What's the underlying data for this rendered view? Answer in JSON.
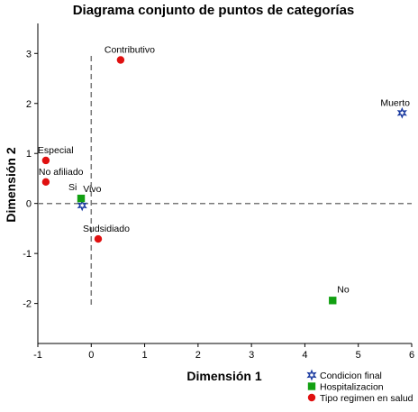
{
  "chart_data": {
    "type": "scatter",
    "title": "Diagrama conjunto de puntos de categorías",
    "xlabel": "Dimensión 1",
    "ylabel": "Dimensión 2",
    "xlim": [
      -1,
      6
    ],
    "ylim": [
      -2.8,
      3.6
    ],
    "x_ticks": [
      -1,
      0,
      1,
      2,
      3,
      4,
      5,
      6
    ],
    "y_ticks": [
      -2,
      -1,
      0,
      1,
      2,
      3
    ],
    "reference_lines": {
      "x": 0,
      "y": 0,
      "style": "dashed"
    },
    "legend_position": "bottom-right",
    "series": [
      {
        "name": "Condicion final",
        "marker": "star",
        "color": "#1a3aa0",
        "points": [
          {
            "label": "Vivo",
            "x": -0.17,
            "y": -0.04
          },
          {
            "label": "Muerto",
            "x": 5.82,
            "y": 1.81
          }
        ]
      },
      {
        "name": "Hospitalizacion",
        "marker": "square",
        "color": "#12a012",
        "points": [
          {
            "label": "Si",
            "x": -0.19,
            "y": 0.1
          },
          {
            "label": "No",
            "x": 4.52,
            "y": -1.94
          }
        ]
      },
      {
        "name": "Tipo regimen en salud",
        "marker": "circle",
        "color": "#e01010",
        "points": [
          {
            "label": "Contributivo",
            "x": 0.55,
            "y": 2.87
          },
          {
            "label": "Especial",
            "x": -0.85,
            "y": 0.86
          },
          {
            "label": "No afiliado",
            "x": -0.85,
            "y": 0.43
          },
          {
            "label": "Sudsidiado",
            "x": 0.13,
            "y": -0.71
          }
        ]
      }
    ]
  }
}
